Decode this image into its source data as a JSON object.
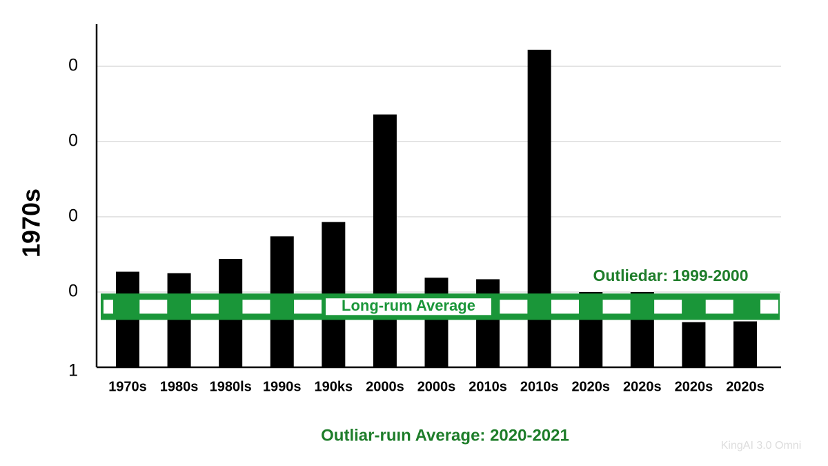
{
  "chart_data": {
    "type": "bar",
    "y_label": "1970s",
    "categories": [
      "1970s",
      "1980s",
      "1980ls",
      "1990s",
      "190ks",
      "2000s",
      "2000s",
      "2010s",
      "2010s",
      "2020s",
      "2020s",
      "2020s",
      "2020s"
    ],
    "values": [
      1.27,
      1.25,
      1.44,
      1.74,
      1.93,
      3.36,
      1.19,
      1.17,
      4.22,
      1.0,
      1.0,
      0.6,
      0.61
    ],
    "color": "#000000",
    "ylim": [
      0,
      4.5
    ],
    "yticks": [
      {
        "value": 0,
        "label": "1"
      },
      {
        "value": 1,
        "label": "0"
      },
      {
        "value": 2,
        "label": "0"
      },
      {
        "value": 3,
        "label": "0"
      },
      {
        "value": 4,
        "label": "0"
      }
    ],
    "grid": true,
    "band": {
      "label": "Long-rum Average",
      "range": [
        0.63,
        0.98
      ],
      "color": "#1a9639"
    },
    "annotations": [
      "Outliedar: 1999-2000",
      "Outliar-ruın Average: 2020-2021"
    ],
    "annotation_color": "#1e7d2a",
    "watermark": "KingAI 3.0 Omni"
  }
}
